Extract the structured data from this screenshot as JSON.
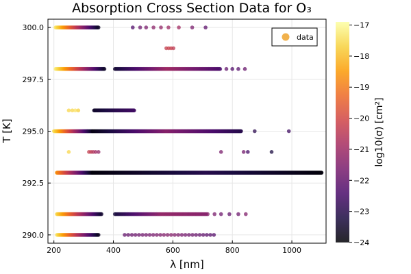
{
  "chart_data": {
    "type": "scatter",
    "title": "Absorption Cross Section Data for O₃",
    "xlabel": "λ [nm]",
    "ylabel": "T [K]",
    "xlim": [
      180,
      1115
    ],
    "ylim": [
      289.6,
      300.4
    ],
    "xticks": [
      200,
      400,
      600,
      800,
      1000
    ],
    "yticks": [
      290.0,
      292.5,
      295.0,
      297.5,
      300.0
    ],
    "ytick_labels": [
      "290.0",
      "292.5",
      "295.0",
      "297.5",
      "300.0"
    ],
    "grid": true,
    "legend": {
      "position": "top-right",
      "entries": [
        "data"
      ],
      "marker_color": "#F0A838"
    },
    "colorbar": {
      "label": "log10(σ) [cm²]",
      "min": -24,
      "max": -16.9,
      "ticks": [
        -24,
        -23,
        -22,
        -21,
        -20,
        -19,
        -18,
        -17
      ],
      "tick_labels": [
        "−24",
        "−23",
        "−22",
        "−21",
        "−20",
        "−19",
        "−18",
        "−17"
      ],
      "colormap": "inferno",
      "colormap_stops": [
        "#000004",
        "#1B0C41",
        "#4A0C6B",
        "#781C6D",
        "#A52C60",
        "#CF4446",
        "#ED6925",
        "#FB9B06",
        "#F7D13D",
        "#FCFFA4"
      ]
    },
    "series": [
      {
        "T": 300.0,
        "lambda_start": 205,
        "lambda_end": 350,
        "sigma_start": -17.3,
        "sigma_end": -23.5,
        "step": 2.5,
        "scatter": [
          [
            465,
            -22.3
          ],
          [
            490,
            -21.8
          ],
          [
            510,
            -21.6
          ],
          [
            535,
            -21.3
          ],
          [
            560,
            -21.2
          ],
          [
            585,
            -21.0
          ],
          [
            620,
            -20.9
          ],
          [
            665,
            -21.6
          ],
          [
            710,
            -22.1
          ]
        ]
      },
      {
        "T": 299.0,
        "scatter": [
          [
            578,
            -20.3
          ],
          [
            586,
            -20.2
          ],
          [
            594,
            -20.2
          ],
          [
            602,
            -20.4
          ]
        ]
      },
      {
        "T": 298.0,
        "lambda_start": 205,
        "lambda_end": 370,
        "sigma_start": -17.2,
        "sigma_end": -23.5,
        "step": 2.5,
        "band": {
          "lambda_start": 405,
          "lambda_end": 760,
          "sigma_start": -23.4,
          "sigma_peak": -21.0,
          "sigma_end": -22.4,
          "step": 3
        },
        "scatter": [
          [
            780,
            -22.0
          ],
          [
            800,
            -22.3
          ],
          [
            820,
            -22.2
          ],
          [
            842,
            -21.9
          ]
        ]
      },
      {
        "T": 296.0,
        "scatter": [
          [
            250,
            -17.6
          ],
          [
            262,
            -17.6
          ],
          [
            272,
            -17.4
          ],
          [
            282,
            -17.7
          ]
        ],
        "band": {
          "lambda_start": 335,
          "lambda_end": 470,
          "sigma_start": -23.5,
          "sigma_peak": -23.0,
          "sigma_end": -22.6,
          "step": 1.5
        }
      },
      {
        "T": 295.0,
        "lambda_start": 200,
        "lambda_end": 330,
        "sigma_start": -17.4,
        "sigma_end": -23.6,
        "step": 1.5,
        "band": {
          "lambda_start": 330,
          "lambda_end": 830,
          "sigma_start": -23.8,
          "sigma_peak": -21.4,
          "sigma_end": -23.0,
          "step": 1.5
        },
        "scatter": [
          [
            875,
            -22.9
          ],
          [
            990,
            -22.6
          ]
        ]
      },
      {
        "T": 294.0,
        "scatter": [
          [
            250,
            -17.6
          ],
          [
            318,
            -20.3
          ],
          [
            325,
            -20.4
          ],
          [
            332,
            -20.6
          ],
          [
            340,
            -20.9
          ],
          [
            350,
            -21.2
          ],
          [
            762,
            -21.6
          ],
          [
            838,
            -21.7
          ],
          [
            852,
            -22.5
          ],
          [
            932,
            -23.2
          ]
        ]
      },
      {
        "T": 293.0,
        "lambda_start": 210,
        "lambda_end": 330,
        "sigma_start": -18.6,
        "sigma_end": -23.8,
        "step": 1,
        "band": {
          "lambda_start": 330,
          "lambda_end": 1100,
          "sigma_start": -23.9,
          "sigma_peak": -23.0,
          "sigma_end": -23.9,
          "step": 1
        }
      },
      {
        "T": 291.0,
        "lambda_start": 210,
        "lambda_end": 360,
        "sigma_start": -17.6,
        "sigma_end": -23.4,
        "step": 2.5,
        "band": {
          "lambda_start": 405,
          "lambda_end": 720,
          "sigma_start": -23.3,
          "sigma_peak": -21.2,
          "sigma_end": -21.4,
          "step": 4
        },
        "scatter": [
          [
            740,
            -21.6
          ],
          [
            762,
            -21.8
          ],
          [
            790,
            -22.0
          ],
          [
            820,
            -21.8
          ],
          [
            845,
            -21.5
          ]
        ]
      },
      {
        "T": 290.0,
        "lambda_start": 210,
        "lambda_end": 350,
        "sigma_start": -17.4,
        "sigma_end": -23.6,
        "step": 2.5,
        "band": {
          "lambda_start": 438,
          "lambda_end": 745,
          "sigma_start": -22.0,
          "sigma_peak": -21.4,
          "sigma_end": -22.3,
          "step": 12
        }
      }
    ]
  }
}
